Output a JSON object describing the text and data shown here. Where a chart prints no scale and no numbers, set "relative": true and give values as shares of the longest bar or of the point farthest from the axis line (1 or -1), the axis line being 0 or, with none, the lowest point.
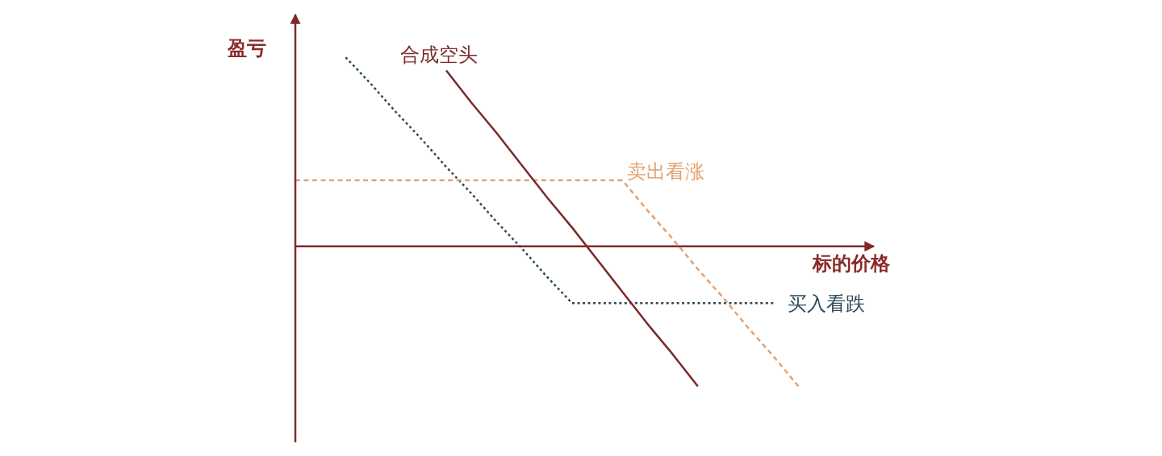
{
  "chart_data": {
    "type": "line",
    "relative": true,
    "xlabel": "标的价格",
    "ylabel": "盈亏",
    "marker": "none",
    "categories": [
      null,
      null,
      null,
      null,
      null,
      null,
      null,
      null,
      null,
      null,
      null,
      null,
      null,
      null,
      null,
      null,
      null,
      null,
      null,
      null,
      null,
      null,
      null,
      null
    ],
    "series": [
      {
        "name": "合成空头",
        "color": "#7b2a2a",
        "line_style": "solid",
        "values": [
          null,
          null,
          null,
          null,
          null,
          null,
          0.93,
          0.76,
          0.6,
          0.43,
          0.26,
          0.1,
          -0.07,
          -0.24,
          -0.41,
          -0.57,
          -0.74,
          null,
          null,
          null,
          null,
          null,
          null,
          null
        ]
      },
      {
        "name": "卖出看涨",
        "color": "#e2a271",
        "line_style": "dashed",
        "values": [
          0.35,
          0.35,
          0.35,
          0.35,
          0.35,
          0.35,
          0.35,
          0.35,
          0.35,
          0.35,
          0.35,
          0.35,
          0.35,
          0.35,
          0.19,
          0.04,
          -0.12,
          -0.27,
          -0.43,
          -0.58,
          -0.74,
          null,
          null,
          null
        ]
      },
      {
        "name": "买入看跌",
        "color": "#2f4858",
        "line_style": "dotted",
        "values": [
          null,
          null,
          1.0,
          0.86,
          0.71,
          0.57,
          0.42,
          0.28,
          0.13,
          -0.01,
          -0.16,
          -0.3,
          -0.3,
          -0.3,
          -0.3,
          -0.3,
          -0.3,
          -0.3,
          -0.3,
          -0.3,
          null,
          null,
          null,
          null
        ]
      }
    ],
    "ref_lines": [
      {
        "axis": "y",
        "value": 0,
        "color": "#7f2a2a"
      }
    ]
  }
}
